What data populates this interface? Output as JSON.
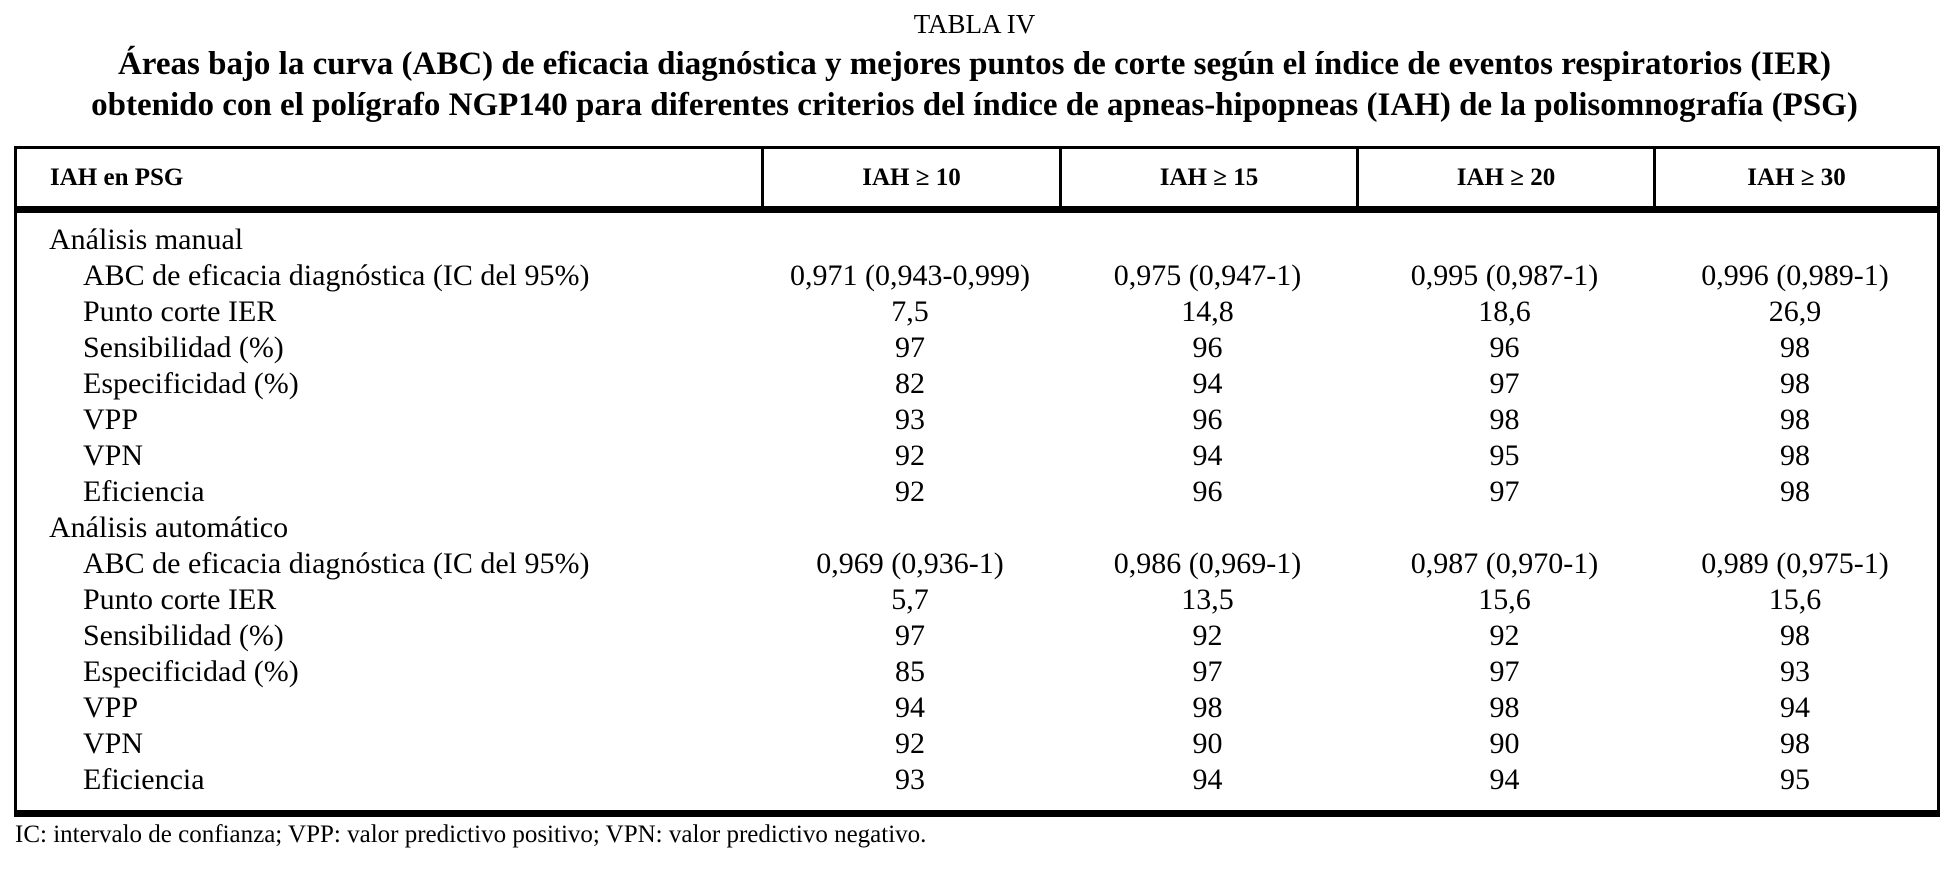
{
  "page": {
    "table_label": "TABLA IV",
    "title_line1": "Áreas bajo la curva (ABC) de eficacia diagnóstica y mejores puntos de corte según el índice de eventos respiratorios (IER)",
    "title_line2": "obtenido con el polígrafo NGP140 para diferentes criterios del índice de apneas-hipopneas (IAH) de la polisomnografía (PSG)",
    "text_color": "#000000",
    "background_color": "#ffffff"
  },
  "table": {
    "columns": [
      "IAH en PSG",
      "IAH ≥ 10",
      "IAH ≥ 15",
      "IAH ≥ 20",
      "IAH ≥ 30"
    ],
    "sections": [
      {
        "header": "Análisis manual",
        "rows": [
          {
            "label": "ABC de eficacia diagnóstica (IC del 95%)",
            "values": [
              "0,971 (0,943-0,999)",
              "0,975 (0,947-1)",
              "0,995 (0,987-1)",
              "0,996 (0,989-1)"
            ]
          },
          {
            "label": "Punto corte IER",
            "values": [
              "7,5",
              "14,8",
              "18,6",
              "26,9"
            ]
          },
          {
            "label": "Sensibilidad (%)",
            "values": [
              "97",
              "96",
              "96",
              "98"
            ]
          },
          {
            "label": "Especificidad (%)",
            "values": [
              "82",
              "94",
              "97",
              "98"
            ]
          },
          {
            "label": "VPP",
            "values": [
              "93",
              "96",
              "98",
              "98"
            ]
          },
          {
            "label": "VPN",
            "values": [
              "92",
              "94",
              "95",
              "98"
            ]
          },
          {
            "label": "Eficiencia",
            "values": [
              "92",
              "96",
              "97",
              "98"
            ]
          }
        ]
      },
      {
        "header": "Análisis automático",
        "rows": [
          {
            "label": "ABC de eficacia diagnóstica (IC del 95%)",
            "values": [
              "0,969 (0,936-1)",
              "0,986 (0,969-1)",
              "0,987 (0,970-1)",
              "0,989 (0,975-1)"
            ]
          },
          {
            "label": "Punto corte IER",
            "values": [
              "5,7",
              "13,5",
              "15,6",
              "15,6"
            ]
          },
          {
            "label": "Sensibilidad (%)",
            "values": [
              "97",
              "92",
              "92",
              "98"
            ]
          },
          {
            "label": "Especificidad (%)",
            "values": [
              "85",
              "97",
              "97",
              "93"
            ]
          },
          {
            "label": "VPP",
            "values": [
              "94",
              "98",
              "98",
              "94"
            ]
          },
          {
            "label": "VPN",
            "values": [
              "92",
              "90",
              "90",
              "98"
            ]
          },
          {
            "label": "Eficiencia",
            "values": [
              "93",
              "94",
              "94",
              "95"
            ]
          }
        ]
      }
    ],
    "footnote": "IC: intervalo de confianza; VPP: valor predictivo positivo; VPN: valor predictivo negativo."
  }
}
